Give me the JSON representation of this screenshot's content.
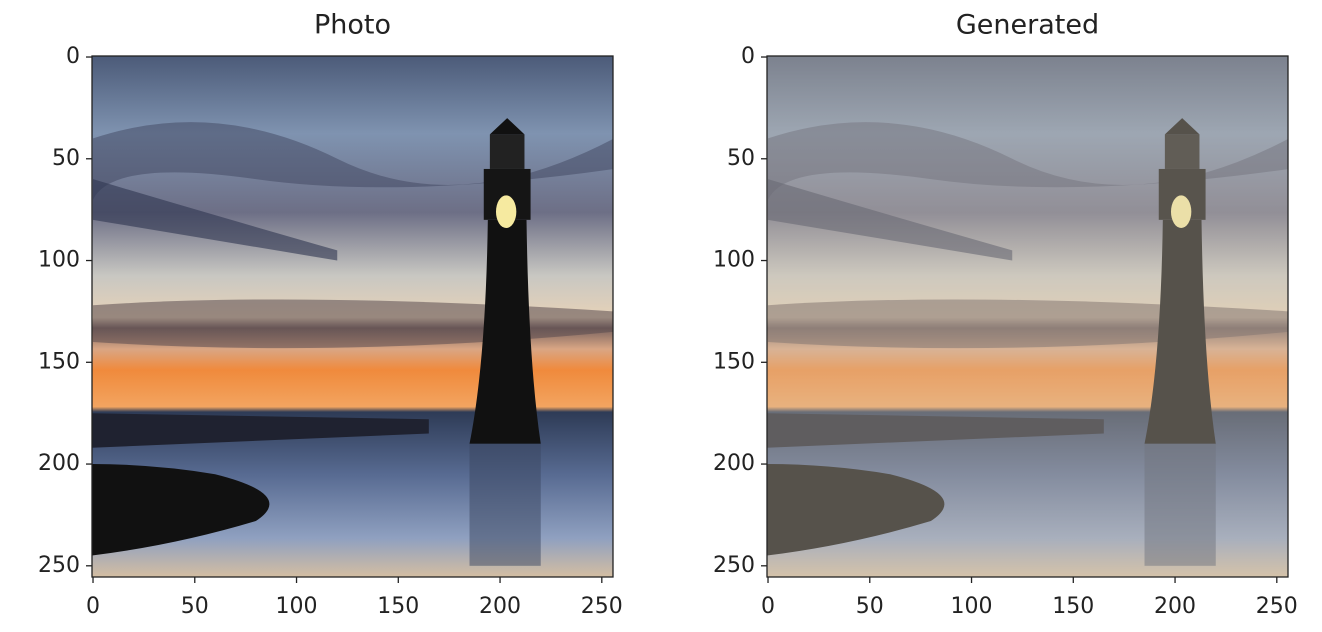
{
  "chart_data": [
    {
      "type": "image",
      "title": "Photo",
      "xlim": [
        -0.5,
        255.5
      ],
      "ylim": [
        255.5,
        -0.5
      ],
      "xticks": [
        0,
        50,
        100,
        150,
        200,
        250
      ],
      "yticks": [
        0,
        50,
        100,
        150,
        200,
        250
      ]
    },
    {
      "type": "image",
      "title": "Generated",
      "xlim": [
        -0.5,
        255.5
      ],
      "ylim": [
        255.5,
        -0.5
      ],
      "xticks": [
        0,
        50,
        100,
        150,
        200,
        250
      ],
      "yticks": [
        0,
        50,
        100,
        150,
        200,
        250
      ]
    }
  ]
}
